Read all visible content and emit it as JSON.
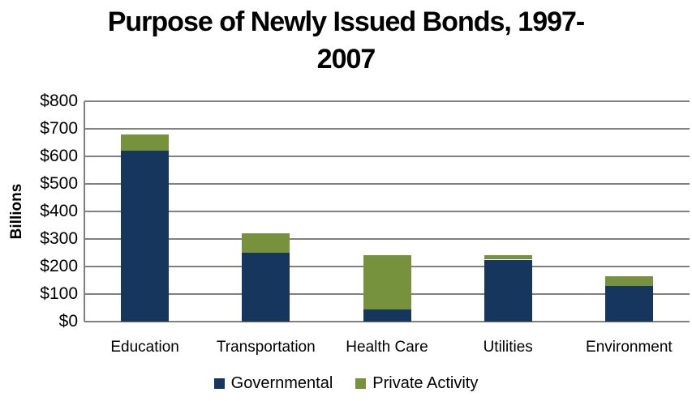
{
  "header": {
    "title_line1": "Purpose of Newly Issued Bonds, 1997-",
    "title_line2": "2007"
  },
  "chart_data": {
    "type": "bar",
    "stacked": true,
    "title": "Purpose of Newly Issued Bonds, 1997-2007",
    "y_axis_title": "Billions",
    "units": "billions of dollars",
    "categories": [
      "Education",
      "Transportation",
      "Health Care",
      "Utilities",
      "Environment"
    ],
    "series": [
      {
        "name": "Governmental",
        "color": "#17365D",
        "values": [
          620,
          250,
          45,
          225,
          130
        ]
      },
      {
        "name": "Private Activity",
        "color": "#76923C",
        "values": [
          60,
          70,
          195,
          15,
          35
        ]
      }
    ],
    "stacked_totals": [
      680,
      320,
      240,
      240,
      165
    ],
    "ylim": [
      0,
      800
    ],
    "ytick_step": 100,
    "ytick_labels": [
      "$0",
      "$100",
      "$200",
      "$300",
      "$400",
      "$500",
      "$600",
      "$700",
      "$800"
    ],
    "grid": "horizontal gridlines at every $100, gray",
    "legend_position": "bottom",
    "gridline_color": "#808080",
    "text_color": "#000000",
    "background_color": "#FFFFFF"
  }
}
